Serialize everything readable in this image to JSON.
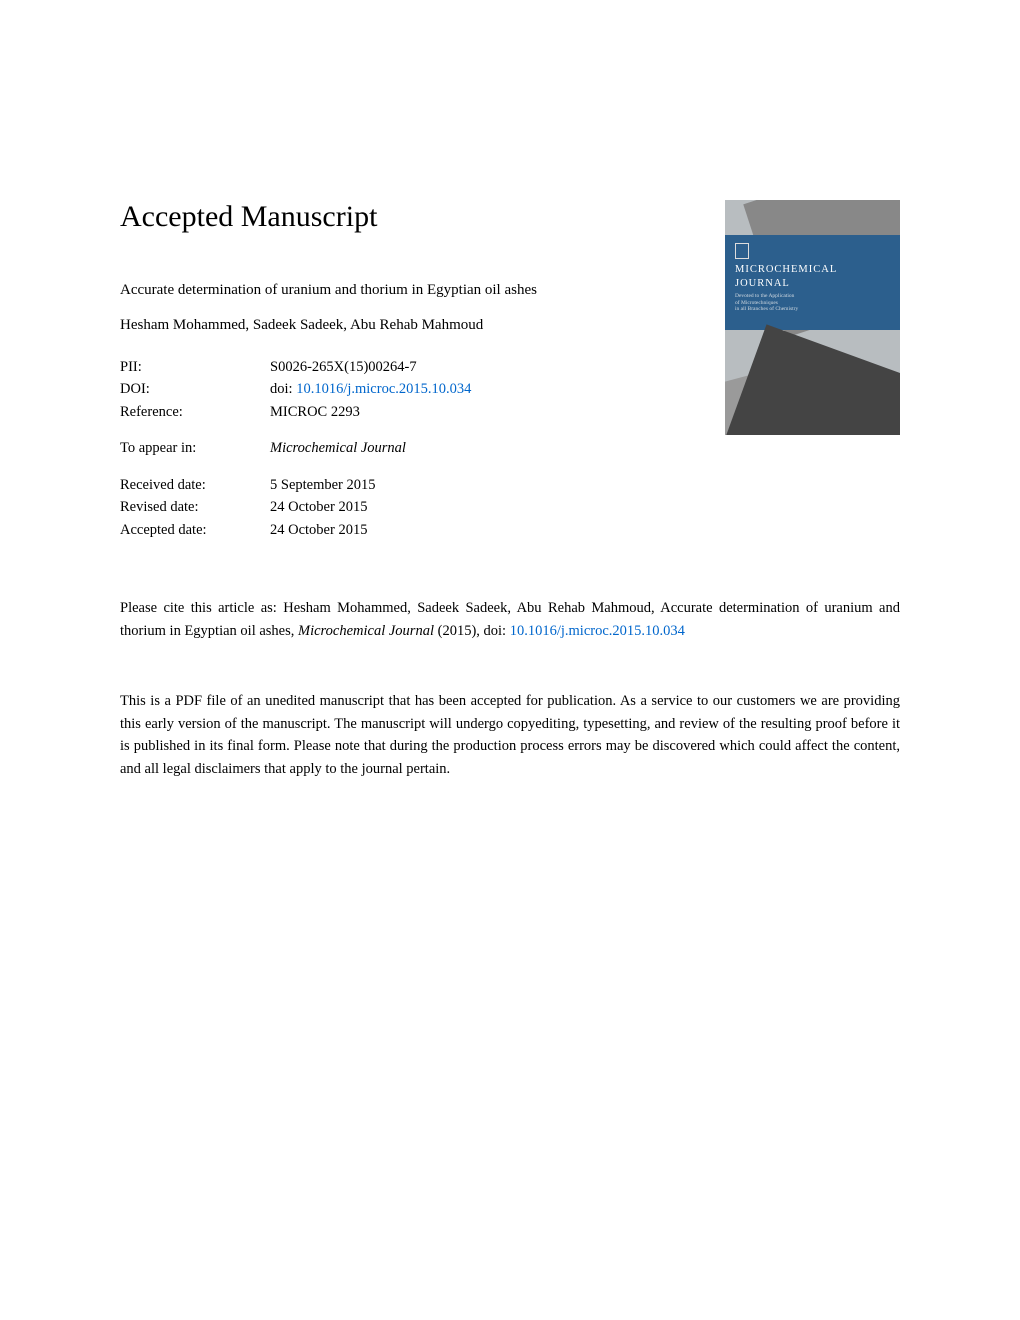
{
  "header": "Accepted Manuscript",
  "title": "Accurate determination of uranium and thorium in Egyptian oil ashes",
  "authors": "Hesham Mohammed, Sadeek Sadeek, Abu Rehab Mahmoud",
  "meta": {
    "pii_label": "PII:",
    "pii_value": "S0026-265X(15)00264-7",
    "doi_label": "DOI:",
    "doi_prefix": "doi: ",
    "doi_link": "10.1016/j.microc.2015.10.034",
    "reference_label": "Reference:",
    "reference_value": "MICROC 2293",
    "appear_label": "To appear in:",
    "appear_value": "Microchemical Journal",
    "received_label": "Received date:",
    "received_value": "5 September 2015",
    "revised_label": "Revised date:",
    "revised_value": "24 October 2015",
    "accepted_label": "Accepted date:",
    "accepted_value": "24 October 2015"
  },
  "cover": {
    "journal_name_line1": "MICROCHEMICAL",
    "journal_name_line2": "JOURNAL",
    "subtitle_line1": "Devoted to the Application",
    "subtitle_line2": "of Microtechniques",
    "subtitle_line3": "in all Branches of Chemistry"
  },
  "citation": {
    "prefix": "Please cite this article as: Hesham Mohammed, Sadeek Sadeek, Abu Rehab Mahmoud, Accurate determination of uranium and thorium in Egyptian oil ashes, ",
    "journal_italic": "Microchemical Journal",
    "year_part": " (2015),  doi: ",
    "doi_link": "10.1016/j.microc.2015.10.034"
  },
  "disclaimer": "This is a PDF file of an unedited manuscript that has been accepted for publication. As a service to our customers we are providing this early version of the manuscript. The manuscript will undergo copyediting, typesetting, and review of the resulting proof before it is published in its final form. Please note that during the production process errors may be discovered which could affect the content, and all legal disclaimers that apply to the journal pertain.",
  "colors": {
    "link": "#0066cc",
    "text": "#000000",
    "cover_blue": "#2c5f8d",
    "cover_gray": "#b8bdc0"
  }
}
